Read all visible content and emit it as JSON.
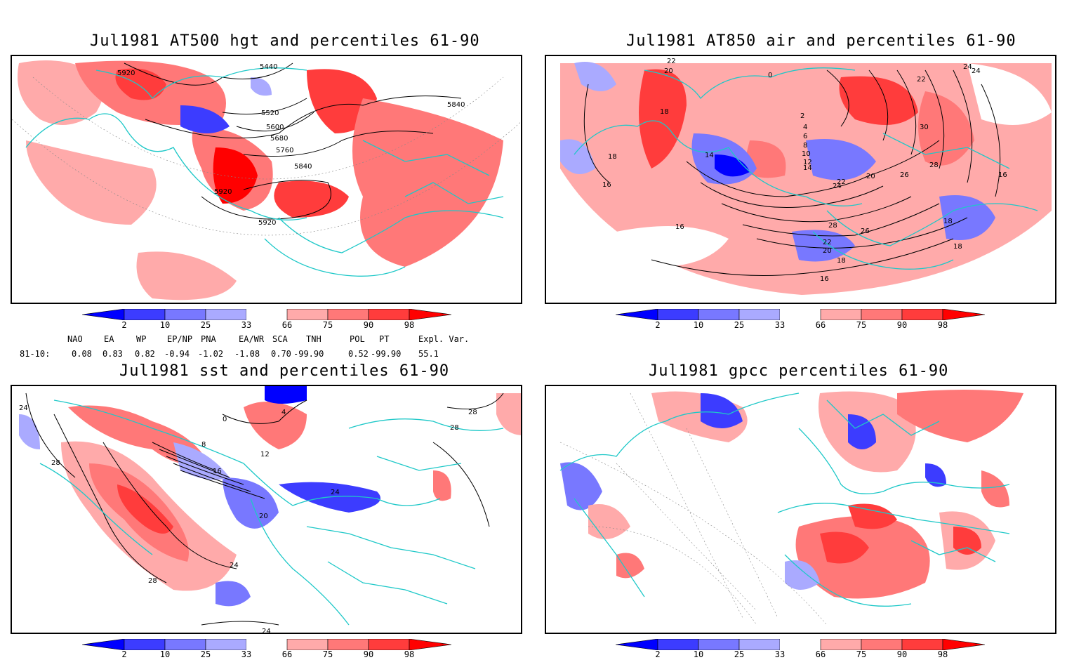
{
  "panels": [
    {
      "title": "Jul1981 AT500 hgt and percentiles 61-90",
      "contour_labels": [
        "5920",
        "5440",
        "5520",
        "5600",
        "5680",
        "5760",
        "5840",
        "5840",
        "5920",
        "5920"
      ]
    },
    {
      "title": "Jul1981 AT850 air and percentiles 61-90",
      "contour_labels": [
        "22",
        "20",
        "18",
        "18",
        "16",
        "14",
        "0",
        "2",
        "4",
        "6",
        "8",
        "10",
        "12",
        "14",
        "20",
        "22",
        "24",
        "26",
        "28",
        "22",
        "20",
        "18",
        "16",
        "16",
        "18",
        "18",
        "24",
        "24",
        "22",
        "30",
        "26",
        "28",
        "16"
      ]
    },
    {
      "title": "Jul1981 sst and percentiles 61-90",
      "contour_labels": [
        "24",
        "28",
        "0",
        "4",
        "8",
        "12",
        "16",
        "20",
        "24",
        "24",
        "28",
        "28",
        "28",
        "24"
      ]
    },
    {
      "title": "Jul1981 gpcc percentiles 61-90",
      "contour_labels": []
    }
  ],
  "colorbar": {
    "labels": [
      "2",
      "10",
      "25",
      "33",
      "66",
      "75",
      "90",
      "98"
    ],
    "colors": [
      "#0000ff",
      "#3c3cff",
      "#7878ff",
      "#aaaaff",
      "#ffffff",
      "#ffaaaa",
      "#ff7878",
      "#ff3c3c",
      "#ff0000"
    ]
  },
  "indices": {
    "header": [
      "NAO",
      "EA",
      "WP",
      "EP/NP",
      "PNA",
      "EA/WR",
      "SCA",
      "TNH",
      "POL",
      "PT",
      "Expl. Var."
    ],
    "row_label": "81-10:",
    "values": [
      "0.08",
      "0.83",
      "0.82",
      "-0.94",
      "-1.02",
      "-1.08",
      "0.70",
      "-99.90",
      "0.52",
      "-99.90",
      "55.1"
    ]
  },
  "colors": {
    "coast": "#1ec8c8",
    "red": "#ff3c3c",
    "blue": "#3c3cff"
  }
}
